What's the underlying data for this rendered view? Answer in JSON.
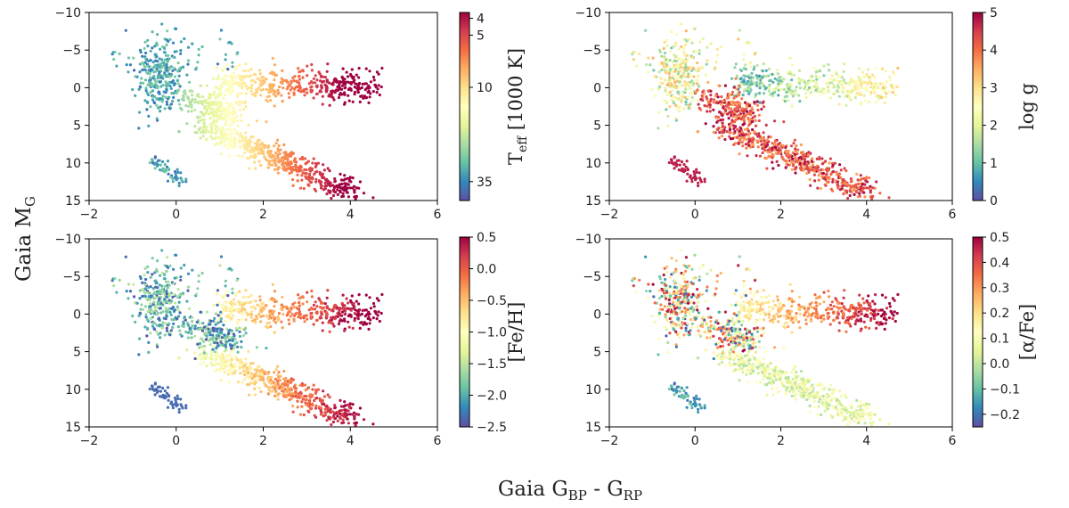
{
  "figure": {
    "ylabel": "Gaia M",
    "ylabel_sub": "G",
    "xlabel_parts": {
      "a": "Gaia G",
      "a_sub": "BP",
      "mid": " - G",
      "b_sub": "RP"
    }
  },
  "chart_data": [
    {
      "type": "scatter",
      "panel": "top-left",
      "color_by": "Teff",
      "xlim": [
        -2,
        6
      ],
      "ylim": [
        15,
        -10
      ],
      "xticks": [
        "-2",
        "0",
        "2",
        "4",
        "6"
      ],
      "yticks": [
        "-10",
        "-5",
        "0",
        "5",
        "10",
        "15"
      ],
      "colorbar": {
        "label": "T",
        "label_sub": "eff",
        "label_rest": " [1000 K]",
        "ticks": [
          "4",
          "5",
          "10",
          "35"
        ],
        "tick_values": [
          4,
          5,
          10,
          35
        ],
        "scale": "log",
        "range": [
          3.7,
          45
        ],
        "reversed": true
      }
    },
    {
      "type": "scatter",
      "panel": "top-right",
      "color_by": "log g",
      "xlim": [
        -2,
        6
      ],
      "ylim": [
        15,
        -10
      ],
      "xticks": [
        "-2",
        "0",
        "2",
        "4",
        "6"
      ],
      "yticks": [
        "-10",
        "-5",
        "0",
        "5",
        "10",
        "15"
      ],
      "colorbar": {
        "label": "log g",
        "ticks": [
          "0",
          "1",
          "2",
          "3",
          "4",
          "5"
        ],
        "tick_values": [
          0,
          1,
          2,
          3,
          4,
          5
        ],
        "range": [
          0,
          5
        ]
      }
    },
    {
      "type": "scatter",
      "panel": "bottom-left",
      "color_by": "[Fe/H]",
      "xlim": [
        -2,
        6
      ],
      "ylim": [
        15,
        -10
      ],
      "xticks": [
        "-2",
        "0",
        "2",
        "4",
        "6"
      ],
      "yticks": [
        "-10",
        "-5",
        "0",
        "5",
        "10",
        "15"
      ],
      "colorbar": {
        "label": "[Fe/H]",
        "ticks": [
          "0.5",
          "0.0",
          "-0.5",
          "-1.0",
          "-1.5",
          "-2.0",
          "-2.5"
        ],
        "tick_values": [
          0.5,
          0.0,
          -0.5,
          -1.0,
          -1.5,
          -2.0,
          -2.5
        ],
        "range": [
          -2.5,
          0.5
        ]
      }
    },
    {
      "type": "scatter",
      "panel": "bottom-right",
      "color_by": "[alpha/Fe]",
      "xlim": [
        -2,
        6
      ],
      "ylim": [
        15,
        -10
      ],
      "xticks": [
        "-2",
        "0",
        "2",
        "4",
        "6"
      ],
      "yticks": [
        "-10",
        "-5",
        "0",
        "5",
        "10",
        "15"
      ],
      "colorbar": {
        "label": "[α/Fe]",
        "ticks": [
          "0.5",
          "0.4",
          "0.3",
          "0.2",
          "0.1",
          "0.0",
          "-0.1",
          "-0.2"
        ],
        "tick_values": [
          0.5,
          0.4,
          0.3,
          0.2,
          0.1,
          0.0,
          -0.1,
          -0.2
        ],
        "range": [
          -0.25,
          0.5
        ]
      }
    }
  ],
  "colormap": [
    "#5e4fa2",
    "#3288bd",
    "#66c2a5",
    "#abdda4",
    "#e6f598",
    "#ffffbf",
    "#fee08b",
    "#fdae61",
    "#f46d43",
    "#d53e4f",
    "#9e0142"
  ]
}
